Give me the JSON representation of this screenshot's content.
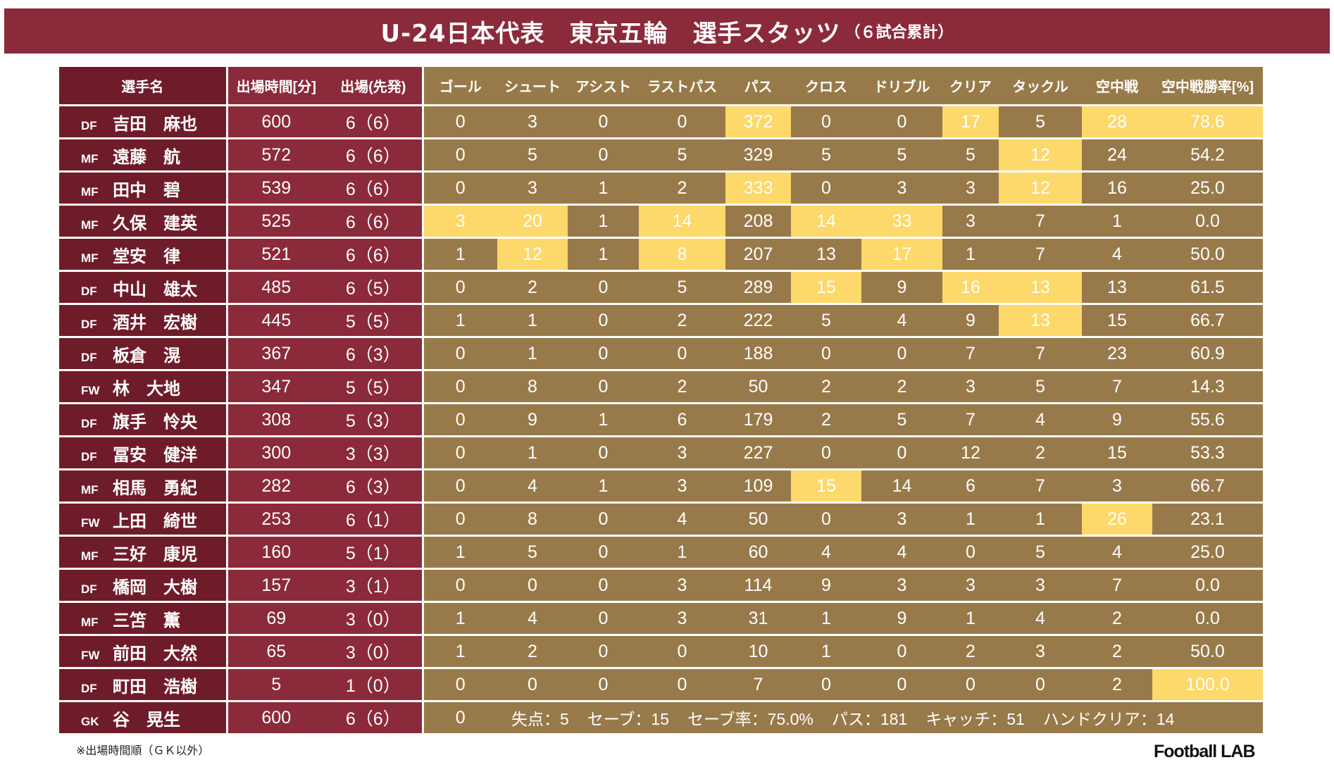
{
  "header": {
    "title": "U-24日本代表　東京五輪　選手スタッツ",
    "subtitle": "（６試合累計）"
  },
  "chart_data": {
    "type": "table",
    "columns": [
      "選手名",
      "出場時間[分]",
      "出場(先発)",
      "ゴール",
      "シュート",
      "アシスト",
      "ラストパス",
      "パス",
      "クロス",
      "ドリブル",
      "クリア",
      "タックル",
      "空中戦",
      "空中戦勝率[%]"
    ],
    "rows": [
      {
        "pos": "DF",
        "name": "吉田　麻也",
        "cells": [
          "600",
          "6（6）",
          "0",
          "3",
          "0",
          "0",
          "372",
          "0",
          "0",
          "17",
          "5",
          "28",
          "78.6"
        ],
        "hl": [
          6,
          9,
          11,
          12
        ],
        "blue": [
          12
        ]
      },
      {
        "pos": "MF",
        "name": "遠藤　航",
        "cells": [
          "572",
          "6（6）",
          "0",
          "5",
          "0",
          "5",
          "329",
          "5",
          "5",
          "5",
          "12",
          "24",
          "54.2"
        ],
        "hl": [
          10
        ],
        "blue": [
          10
        ]
      },
      {
        "pos": "MF",
        "name": "田中　碧",
        "cells": [
          "539",
          "6（6）",
          "0",
          "3",
          "1",
          "2",
          "333",
          "0",
          "3",
          "3",
          "12",
          "16",
          "25.0"
        ],
        "hl": [
          6,
          10
        ],
        "blue": [
          6,
          10
        ]
      },
      {
        "pos": "MF",
        "name": "久保　建英",
        "cells": [
          "525",
          "6（6）",
          "3",
          "20",
          "1",
          "14",
          "208",
          "14",
          "33",
          "3",
          "7",
          "1",
          "0.0"
        ],
        "hl": [
          2,
          3,
          5,
          7,
          8
        ],
        "blue": [
          7
        ]
      },
      {
        "pos": "MF",
        "name": "堂安　律",
        "cells": [
          "521",
          "6（6）",
          "1",
          "12",
          "1",
          "8",
          "207",
          "13",
          "17",
          "1",
          "7",
          "4",
          "50.0"
        ],
        "hl": [
          3,
          5,
          8
        ],
        "blue": [
          3,
          5,
          8
        ]
      },
      {
        "pos": "DF",
        "name": "中山　雄太",
        "cells": [
          "485",
          "6（5）",
          "0",
          "2",
          "0",
          "5",
          "289",
          "15",
          "9",
          "16",
          "13",
          "13",
          "61.5"
        ],
        "hl": [
          7,
          9,
          10
        ],
        "blue": [
          9
        ]
      },
      {
        "pos": "DF",
        "name": "酒井　宏樹",
        "cells": [
          "445",
          "5（5）",
          "1",
          "1",
          "0",
          "2",
          "222",
          "5",
          "4",
          "9",
          "13",
          "15",
          "66.7"
        ],
        "hl": [
          10
        ],
        "blue": []
      },
      {
        "pos": "DF",
        "name": "板倉　滉",
        "cells": [
          "367",
          "6（3）",
          "0",
          "1",
          "0",
          "0",
          "188",
          "0",
          "0",
          "7",
          "7",
          "23",
          "60.9"
        ],
        "hl": [],
        "blue": []
      },
      {
        "pos": "FW",
        "name": "林　大地",
        "cells": [
          "347",
          "5（5）",
          "0",
          "8",
          "0",
          "2",
          "50",
          "2",
          "2",
          "3",
          "5",
          "7",
          "14.3"
        ],
        "hl": [],
        "blue": []
      },
      {
        "pos": "DF",
        "name": "旗手　怜央",
        "cells": [
          "308",
          "5（3）",
          "0",
          "9",
          "1",
          "6",
          "179",
          "2",
          "5",
          "7",
          "4",
          "9",
          "55.6"
        ],
        "hl": [],
        "blue": []
      },
      {
        "pos": "DF",
        "name": "冨安　健洋",
        "cells": [
          "300",
          "3（3）",
          "0",
          "1",
          "0",
          "3",
          "227",
          "0",
          "0",
          "12",
          "2",
          "15",
          "53.3"
        ],
        "hl": [],
        "blue": []
      },
      {
        "pos": "MF",
        "name": "相馬　勇紀",
        "cells": [
          "282",
          "6（3）",
          "0",
          "4",
          "1",
          "3",
          "109",
          "15",
          "14",
          "6",
          "7",
          "3",
          "66.7"
        ],
        "hl": [
          7
        ],
        "blue": []
      },
      {
        "pos": "FW",
        "name": "上田　綺世",
        "cells": [
          "253",
          "6（1）",
          "0",
          "8",
          "0",
          "4",
          "50",
          "0",
          "3",
          "1",
          "1",
          "26",
          "23.1"
        ],
        "hl": [
          11
        ],
        "blue": [
          11
        ]
      },
      {
        "pos": "MF",
        "name": "三好　康児",
        "cells": [
          "160",
          "5（1）",
          "1",
          "5",
          "0",
          "1",
          "60",
          "4",
          "4",
          "0",
          "5",
          "4",
          "25.0"
        ],
        "hl": [],
        "blue": []
      },
      {
        "pos": "DF",
        "name": "橋岡　大樹",
        "cells": [
          "157",
          "3（1）",
          "0",
          "0",
          "0",
          "3",
          "114",
          "9",
          "3",
          "3",
          "3",
          "7",
          "0.0"
        ],
        "hl": [],
        "blue": []
      },
      {
        "pos": "MF",
        "name": "三笘　薫",
        "cells": [
          "69",
          "3（0）",
          "1",
          "4",
          "0",
          "3",
          "31",
          "1",
          "9",
          "1",
          "4",
          "2",
          "0.0"
        ],
        "hl": [],
        "blue": []
      },
      {
        "pos": "FW",
        "name": "前田　大然",
        "cells": [
          "65",
          "3（0）",
          "1",
          "2",
          "0",
          "0",
          "10",
          "1",
          "0",
          "2",
          "3",
          "2",
          "50.0"
        ],
        "hl": [],
        "blue": []
      },
      {
        "pos": "DF",
        "name": "町田　浩樹",
        "cells": [
          "5",
          "1（0）",
          "0",
          "0",
          "0",
          "0",
          "7",
          "0",
          "0",
          "0",
          "0",
          "2",
          "100.0"
        ],
        "hl": [
          12
        ],
        "blue": []
      }
    ],
    "gk": {
      "pos": "GK",
      "name": "谷　晃生",
      "minutes": "600",
      "apps": "6（6）",
      "goals": "0",
      "stats": [
        "失点：5",
        "セーブ：15",
        "セーブ率：75.0%",
        "パス：181",
        "キャッチ：51",
        "ハンドクリア：14"
      ]
    },
    "colors": {
      "banner": "#8b2a3b",
      "name_col": "#6f1c2a",
      "info_col": "#8b2a3b",
      "stat_bg": "#987a4a",
      "highlight": "#fdd86a",
      "highlight_text_blue": "#1f6fb0"
    }
  },
  "footer": {
    "note": "※出場時間順（ＧＫ以外）",
    "brand": "Football LAB"
  }
}
